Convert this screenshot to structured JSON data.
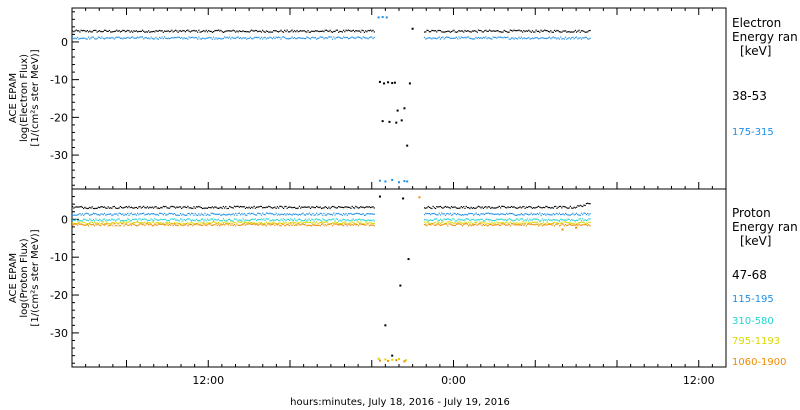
{
  "chart_data": [
    {
      "type": "scatter",
      "panel": "electron",
      "ylabel": [
        "ACE EPAM",
        "log(Electron Flux)",
        "[1/(cm²s ster MeV)]"
      ],
      "ylim": [
        -39,
        9
      ],
      "yticks": [
        0,
        -10,
        -20,
        -30
      ],
      "legend_title": [
        "Electron",
        "Energy ran",
        "[keV]"
      ],
      "series": [
        {
          "name": "38-53",
          "color": "#000000",
          "baseline": 3.0,
          "gap_points": [
            [
              28.6,
              -10.6
            ],
            [
              28.9,
              -11.0
            ],
            [
              29.2,
              -10.7
            ],
            [
              29.5,
              -10.9
            ],
            [
              29.7,
              -10.8
            ],
            [
              29.9,
              -18.2
            ],
            [
              28.8,
              -21.0
            ],
            [
              29.3,
              -21.2
            ],
            [
              29.8,
              -21.4
            ],
            [
              30.2,
              -20.8
            ],
            [
              30.4,
              -17.6
            ],
            [
              30.6,
              -27.5
            ],
            [
              30.8,
              -11.0
            ],
            [
              31.0,
              3.5
            ]
          ]
        },
        {
          "name": "175-315",
          "color": "#1f8fe6",
          "baseline": 1.2,
          "gap_points": [
            [
              28.5,
              6.5
            ],
            [
              28.8,
              6.6
            ],
            [
              29.1,
              6.5
            ],
            [
              28.6,
              -36.8
            ],
            [
              29.0,
              -37.0
            ],
            [
              29.5,
              -36.6
            ],
            [
              30.0,
              -37.2
            ],
            [
              30.4,
              -36.9
            ],
            [
              30.6,
              -37.0
            ]
          ]
        }
      ]
    },
    {
      "type": "scatter",
      "panel": "proton",
      "ylabel": [
        "ACE EPAM",
        "log(Proton Flux)",
        "[1/(cm²s ster MeV)]"
      ],
      "ylim": [
        -39,
        8
      ],
      "yticks": [
        0,
        -10,
        -20,
        -30
      ],
      "legend_title": [
        "Proton",
        "Energy ran",
        "[keV]"
      ],
      "series": [
        {
          "name": "47-68",
          "color": "#000000",
          "baseline": 3.3,
          "gap_points": [
            [
              28.6,
              6.0
            ],
            [
              30.3,
              5.5
            ],
            [
              30.7,
              -10.5
            ],
            [
              30.1,
              -17.5
            ],
            [
              29.0,
              -28.0
            ],
            [
              29.5,
              -36.0
            ]
          ]
        },
        {
          "name": "115-195",
          "color": "#1f8fe6",
          "baseline": 1.5,
          "gap_points": []
        },
        {
          "name": "310-580",
          "color": "#22d3d3",
          "baseline": 0.0,
          "gap_points": []
        },
        {
          "name": "795-1193",
          "color": "#d8d800",
          "baseline": -0.8,
          "gap_points": [
            [
              28.5,
              -36.8
            ],
            [
              29.0,
              -37.0
            ],
            [
              29.5,
              -37.1
            ],
            [
              30.0,
              -36.9
            ],
            [
              30.5,
              -37.2
            ]
          ]
        },
        {
          "name": "1060-1900",
          "color": "#f08a00",
          "baseline": -1.3,
          "gap_points": [
            [
              28.6,
              -37.3
            ],
            [
              29.2,
              -37.4
            ],
            [
              29.8,
              -37.2
            ],
            [
              30.4,
              -37.5
            ],
            [
              31.5,
              5.8
            ],
            [
              42.0,
              -2.7
            ],
            [
              43.0,
              -2.2
            ]
          ]
        }
      ]
    }
  ],
  "x_axis": {
    "xlim": [
      6,
      54
    ],
    "ticks": [
      {
        "x": 16,
        "label": "12:00"
      },
      {
        "x": 34,
        "label": "0:00"
      },
      {
        "x": 52,
        "label": "12:00"
      }
    ],
    "xlabel": "hours:minutes, July 18, 2016 - July 19, 2016",
    "data_start": 6,
    "data_end": 44,
    "gap_start": 28.2,
    "gap_end": 31.8
  }
}
